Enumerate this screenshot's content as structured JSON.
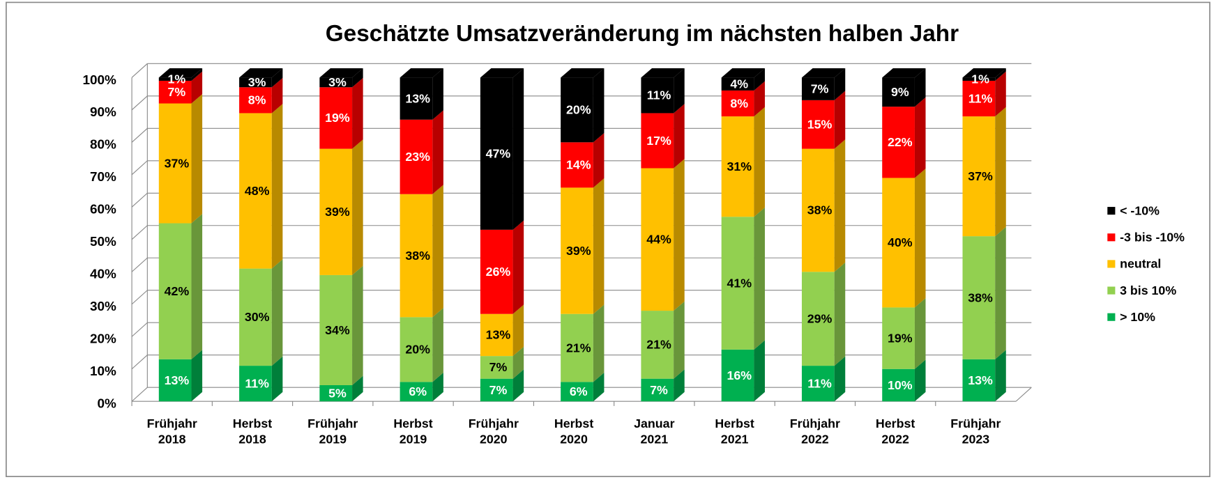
{
  "chart_data": {
    "type": "bar",
    "stacked": true,
    "title": "Geschätzte Umsatzveränderung im nächsten halben Jahr",
    "categories": [
      "Frühjahr 2018",
      "Herbst 2018",
      "Frühjahr 2019",
      "Herbst 2019",
      "Frühjahr 2020",
      "Herbst 2020",
      "Januar 2021",
      "Herbst 2021",
      "Frühjahr 2022",
      "Herbst 2022",
      "Frühjahr 2023"
    ],
    "series": [
      {
        "name": "> 10%",
        "color": "#00b050",
        "values": [
          13,
          11,
          5,
          6,
          7,
          6,
          7,
          16,
          11,
          10,
          13
        ],
        "value_labels": [
          "13%",
          "11%",
          "5%",
          "6%",
          "7%",
          "6%",
          "7%",
          "16%",
          "11%",
          "10%",
          "13%"
        ]
      },
      {
        "name": "3 bis 10%",
        "color": "#92d050",
        "values": [
          42,
          30,
          34,
          20,
          7,
          21,
          21,
          41,
          29,
          19,
          38
        ],
        "value_labels": [
          "42%",
          "30%",
          "34%",
          "20%",
          "7%",
          "21%",
          "21%",
          "41%",
          "29%",
          "19%",
          "38%"
        ]
      },
      {
        "name": "neutral",
        "color": "#ffc000",
        "values": [
          37,
          48,
          39,
          38,
          13,
          39,
          44,
          31,
          38,
          40,
          37
        ],
        "value_labels": [
          "37%",
          "48%",
          "39%",
          "38%",
          "13%",
          "39%",
          "44%",
          "31%",
          "38%",
          "40%",
          "37%"
        ]
      },
      {
        "name": "-3 bis -10%",
        "color": "#ff0000",
        "values": [
          7,
          8,
          19,
          23,
          26,
          14,
          17,
          8,
          15,
          22,
          11
        ],
        "value_labels": [
          "7%",
          "8%",
          "19%",
          "23%",
          "26%",
          "14%",
          "17%",
          "8%",
          "15%",
          "22%",
          "11%"
        ]
      },
      {
        "name": "< -10%",
        "color": "#000000",
        "values": [
          1,
          3,
          3,
          13,
          47,
          20,
          11,
          4,
          7,
          9,
          1
        ],
        "value_labels": [
          "1%",
          "3%",
          "3%",
          "13%",
          "47%",
          "20%",
          "11%",
          "4%",
          "7%",
          "9%",
          "1%"
        ]
      }
    ],
    "ylim": [
      0,
      100
    ],
    "yticks": [
      {
        "value": 0,
        "label": "0%"
      },
      {
        "value": 10,
        "label": "10%"
      },
      {
        "value": 20,
        "label": "20%"
      },
      {
        "value": 30,
        "label": "30%"
      },
      {
        "value": 40,
        "label": "40%"
      },
      {
        "value": 50,
        "label": "50%"
      },
      {
        "value": 60,
        "label": "60%"
      },
      {
        "value": 70,
        "label": "70%"
      },
      {
        "value": 80,
        "label": "80%"
      },
      {
        "value": 90,
        "label": "90%"
      },
      {
        "value": 100,
        "label": "100%"
      }
    ],
    "grid": true,
    "legend": "right"
  }
}
